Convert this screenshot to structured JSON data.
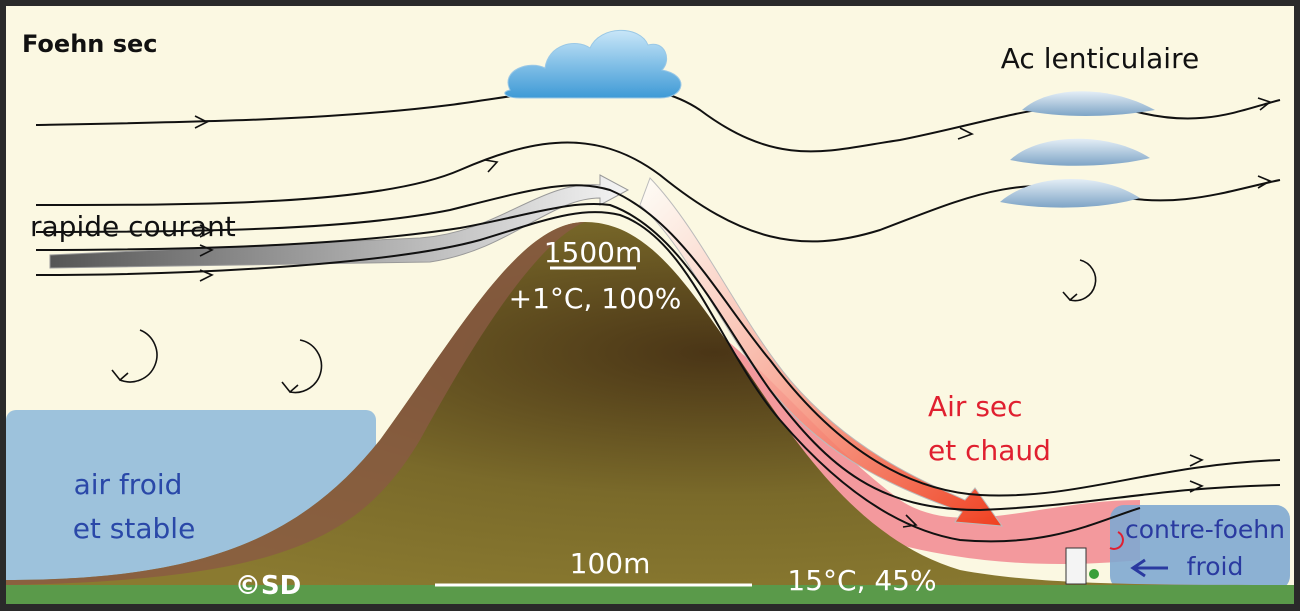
{
  "title": "Foehn sec",
  "labels": {
    "lenticular": "Ac lenticulaire",
    "jet": "rapide courant",
    "summit_altitude": "1500m",
    "summit_conditions": "+1°C, 100%",
    "warm_air": [
      "Air sec",
      "et chaud"
    ],
    "cold_air": [
      "air froid",
      "et stable"
    ],
    "scale": "100m",
    "valley_conditions": "15°C, 45%",
    "copyright": "©SD",
    "counter_foehn": [
      "contre-foehn",
      "froid"
    ]
  }
}
